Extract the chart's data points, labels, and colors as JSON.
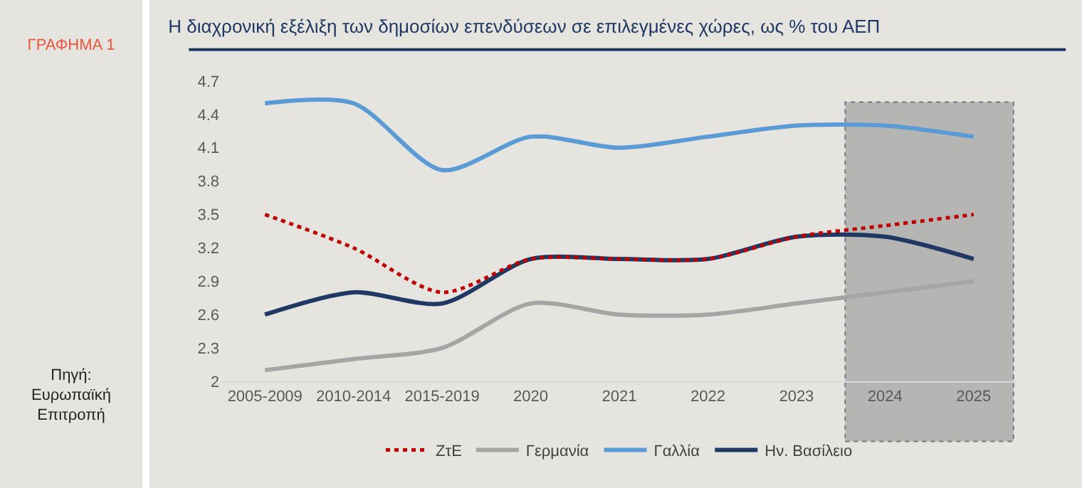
{
  "chart_data": {
    "type": "line",
    "title": "Η διαχρονική εξέλιξη των δημοσίων επενδύσεων σε επιλεγμένες χώρες, ως % του ΑΕΠ",
    "annotations": [
      "ΓΡΑΦΗΜΑ 1",
      "Πηγή: Ευρωπαϊκή Επιτροπή"
    ],
    "categories": [
      "2005-2009",
      "2010-2014",
      "2015-2019",
      "2020",
      "2021",
      "2022",
      "2023",
      "2024",
      "2025"
    ],
    "series": [
      {
        "name": "ΖτΕ",
        "color": "#c00000",
        "line_style": "dotted",
        "values": [
          3.5,
          3.2,
          2.8,
          3.1,
          3.1,
          3.1,
          3.3,
          3.4,
          3.5
        ]
      },
      {
        "name": "Γερμανία",
        "color": "#a5a5a5",
        "values": [
          2.1,
          2.2,
          2.3,
          2.7,
          2.6,
          2.6,
          2.7,
          2.8,
          2.9
        ]
      },
      {
        "name": "Γαλλία",
        "color": "#5b9bd5",
        "values": [
          4.5,
          4.5,
          3.9,
          4.2,
          4.1,
          4.2,
          4.3,
          4.3,
          4.2
        ]
      },
      {
        "name": "Ην. Βασίλειο",
        "color": "#1f3864",
        "values": [
          2.6,
          2.8,
          2.7,
          3.1,
          3.1,
          3.1,
          3.3,
          3.3,
          3.1
        ]
      }
    ],
    "ylim": [
      2,
      4.7
    ],
    "yticks": [
      2,
      2.3,
      2.6,
      2.9,
      3.2,
      3.5,
      3.8,
      4.1,
      4.4,
      4.7
    ],
    "bands": [
      {
        "axis": "x",
        "from": "2024",
        "to": "2025",
        "color": "#a6a6a6"
      }
    ],
    "grid": false,
    "legend": "bottom",
    "line_style": "solid"
  }
}
